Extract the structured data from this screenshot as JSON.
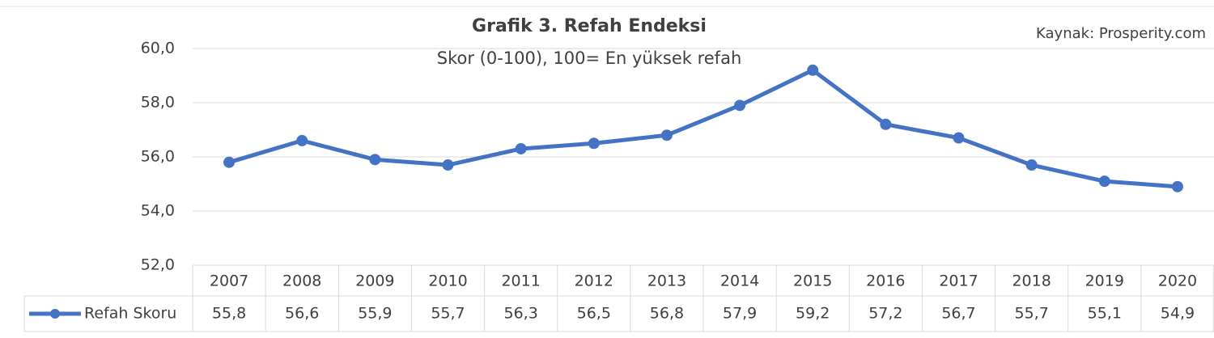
{
  "chart_data": {
    "type": "line",
    "title": "Grafik 3. Refah Endeksi",
    "subtitle": "Skor (0-100), 100= En yüksek refah",
    "source": "Kaynak: Prosperity.com",
    "categories": [
      "2007",
      "2008",
      "2009",
      "2010",
      "2011",
      "2012",
      "2013",
      "2014",
      "2015",
      "2016",
      "2017",
      "2018",
      "2019",
      "2020"
    ],
    "series": [
      {
        "name": "Refah Skoru",
        "color": "#4472c4",
        "values": [
          55.8,
          56.6,
          55.9,
          55.7,
          56.3,
          56.5,
          56.8,
          57.9,
          59.2,
          57.2,
          56.7,
          55.7,
          55.1,
          54.9
        ],
        "value_labels": [
          "55,8",
          "56,6",
          "55,9",
          "55,7",
          "56,3",
          "56,5",
          "56,8",
          "57,9",
          "59,2",
          "57,2",
          "56,7",
          "55,7",
          "55,1",
          "54,9"
        ]
      }
    ],
    "ylim": [
      52,
      60
    ],
    "yticks": [
      {
        "value": 52,
        "label": "52,0"
      },
      {
        "value": 54,
        "label": "54,0"
      },
      {
        "value": 56,
        "label": "56,0"
      },
      {
        "value": 58,
        "label": "58,0"
      },
      {
        "value": 60,
        "label": "60,0"
      }
    ],
    "grid": true
  }
}
